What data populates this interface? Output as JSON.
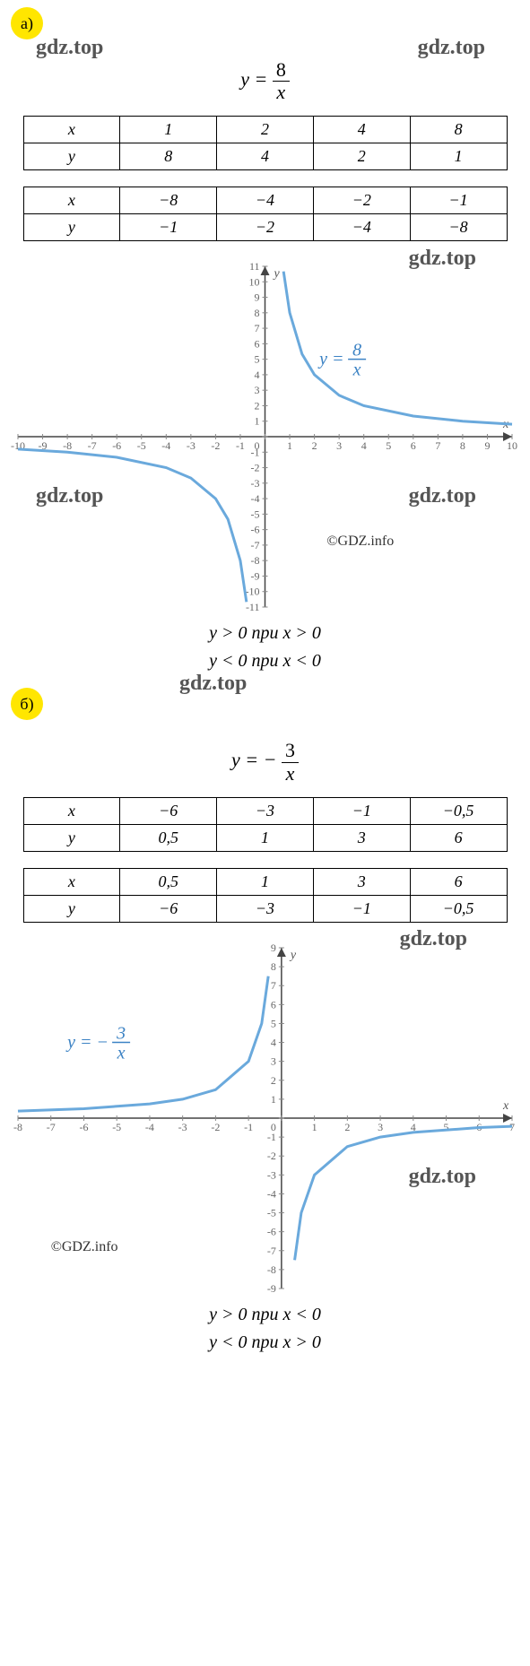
{
  "section_a": {
    "badge": "а)",
    "badge_bg": "#ffe600",
    "formula_lhs": "y =",
    "formula_num": "8",
    "formula_den": "x",
    "watermarks": [
      "gdz.top",
      "gdz.top",
      "gdz.top",
      "gdz.top"
    ],
    "table1": {
      "headers": [
        "x",
        "1",
        "2",
        "4",
        "8"
      ],
      "row": [
        "y",
        "8",
        "4",
        "2",
        "1"
      ]
    },
    "table2": {
      "headers": [
        "x",
        "−8",
        "−4",
        "−2",
        "−1"
      ],
      "row": [
        "y",
        "−1",
        "−2",
        "−4",
        "−8"
      ]
    },
    "chart": {
      "xlim": [
        -10,
        10
      ],
      "ylim": [
        -11,
        11
      ],
      "xticks": [
        -10,
        -9,
        -8,
        -7,
        -6,
        -5,
        -4,
        -3,
        -2,
        -1,
        0,
        1,
        2,
        3,
        4,
        5,
        6,
        7,
        8,
        9,
        10
      ],
      "yticks": [
        -11,
        -10,
        -9,
        -8,
        -7,
        -6,
        -5,
        -4,
        -3,
        -2,
        -1,
        0,
        1,
        2,
        3,
        4,
        5,
        6,
        7,
        8,
        9,
        10,
        11
      ],
      "curve_label_lhs": "y =",
      "curve_label_num": "8",
      "curve_label_den": "x",
      "curve_color": "#6aa9dc",
      "axis_color": "#444444",
      "tick_color": "#888888",
      "x_axis_label": "x",
      "y_axis_label": "y",
      "copyright": "©GDZ.info",
      "branch_pos": [
        [
          0.75,
          10.67
        ],
        [
          1,
          8
        ],
        [
          1.5,
          5.33
        ],
        [
          2,
          4
        ],
        [
          3,
          2.67
        ],
        [
          4,
          2
        ],
        [
          6,
          1.33
        ],
        [
          8,
          1
        ],
        [
          10,
          0.8
        ]
      ],
      "branch_neg": [
        [
          -10,
          -0.8
        ],
        [
          -8,
          -1
        ],
        [
          -6,
          -1.33
        ],
        [
          -4,
          -2
        ],
        [
          -3,
          -2.67
        ],
        [
          -2,
          -4
        ],
        [
          -1.5,
          -5.33
        ],
        [
          -1,
          -8
        ],
        [
          -0.75,
          -10.67
        ]
      ]
    },
    "conditions": [
      "y > 0 при x > 0",
      "y < 0 при x < 0"
    ]
  },
  "section_b": {
    "badge": "б)",
    "badge_bg": "#ffe600",
    "formula_lhs": "y = −",
    "formula_num": "3",
    "formula_den": "x",
    "watermarks": [
      "gdz.top",
      "gdz.top",
      "gdz.top"
    ],
    "table1": {
      "headers": [
        "x",
        "−6",
        "−3",
        "−1",
        "−0,5"
      ],
      "row": [
        "y",
        "0,5",
        "1",
        "3",
        "6"
      ]
    },
    "table2": {
      "headers": [
        "x",
        "0,5",
        "1",
        "3",
        "6"
      ],
      "row": [
        "y",
        "−6",
        "−3",
        "−1",
        "−0,5"
      ]
    },
    "chart": {
      "xlim": [
        -8,
        7
      ],
      "ylim": [
        -9,
        9
      ],
      "xticks": [
        -8,
        -7,
        -6,
        -5,
        -4,
        -3,
        -2,
        -1,
        0,
        1,
        2,
        3,
        4,
        5,
        6,
        7
      ],
      "yticks": [
        -9,
        -8,
        -7,
        -6,
        -5,
        -4,
        -3,
        -2,
        -1,
        0,
        1,
        2,
        3,
        4,
        5,
        6,
        7,
        8,
        9
      ],
      "curve_label_lhs": "y = −",
      "curve_label_num": "3",
      "curve_label_den": "x",
      "curve_color": "#6aa9dc",
      "axis_color": "#444444",
      "tick_color": "#888888",
      "x_axis_label": "x",
      "y_axis_label": "y",
      "copyright": "©GDZ.info",
      "branch_neg": [
        [
          -8,
          0.375
        ],
        [
          -6,
          0.5
        ],
        [
          -4,
          0.75
        ],
        [
          -3,
          1
        ],
        [
          -2,
          1.5
        ],
        [
          -1,
          3
        ],
        [
          -0.6,
          5
        ],
        [
          -0.4,
          7.5
        ]
      ],
      "branch_pos": [
        [
          0.4,
          -7.5
        ],
        [
          0.6,
          -5
        ],
        [
          1,
          -3
        ],
        [
          2,
          -1.5
        ],
        [
          3,
          -1
        ],
        [
          4,
          -0.75
        ],
        [
          6,
          -0.5
        ],
        [
          7,
          -0.43
        ]
      ]
    },
    "conditions": [
      "y > 0 при x < 0",
      "y < 0 при x > 0"
    ]
  }
}
